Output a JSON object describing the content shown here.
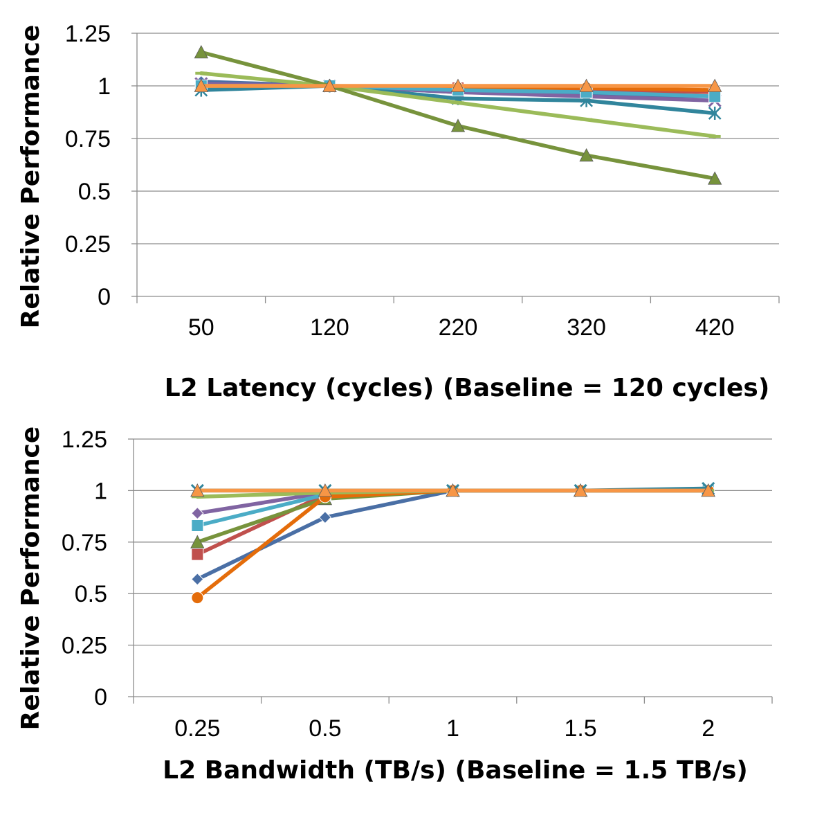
{
  "colors": {
    "grid": "#8c8c8c",
    "axis": "#8c8c8c",
    "s_blue": "#4a6fa5",
    "s_red": "#c0504d",
    "s_green": "#77933c",
    "s_purple": "#8064a2",
    "s_teal": "#31859c",
    "s_orange": "#e46c0a",
    "s_lightgreen": "#9bbb59",
    "s_lightblue": "#4bacc6",
    "s_orange2": "#f79646"
  },
  "chart_data": [
    {
      "type": "line",
      "xlabel": "L2 Latency (cycles) (Baseline = 120 cycles)",
      "ylabel": "Relative Performance",
      "categories": [
        "50",
        "120",
        "220",
        "320",
        "420"
      ],
      "y_ticks": [
        "0",
        "0.25",
        "0.5",
        "0.75",
        "1",
        "1.25"
      ],
      "ylim": [
        0,
        1.25
      ],
      "grid": true,
      "series": [
        {
          "color": "#4a6fa5",
          "marker": "diamond",
          "values": [
            1.02,
            1.0,
            0.97,
            0.96,
            0.95
          ]
        },
        {
          "color": "#c0504d",
          "marker": "square",
          "values": [
            1.0,
            1.0,
            0.99,
            0.98,
            0.97
          ]
        },
        {
          "color": "#8064a2",
          "marker": "x",
          "values": [
            1.01,
            1.0,
            0.97,
            0.95,
            0.93
          ]
        },
        {
          "color": "#31859c",
          "marker": "star",
          "values": [
            0.98,
            1.0,
            0.94,
            0.93,
            0.87
          ]
        },
        {
          "color": "#e46c0a",
          "marker": "circle",
          "values": [
            1.0,
            1.0,
            0.99,
            0.99,
            0.98
          ]
        },
        {
          "color": "#4bacc6",
          "marker": "square",
          "values": [
            1.0,
            1.0,
            0.98,
            0.97,
            0.95
          ]
        },
        {
          "color": "#9bbb59",
          "marker": "dash",
          "values": [
            1.06,
            1.0,
            0.92,
            0.84,
            0.76
          ]
        },
        {
          "color": "#77933c",
          "marker": "triangle",
          "values": [
            1.16,
            1.0,
            0.81,
            0.67,
            0.56
          ]
        },
        {
          "color": "#f79646",
          "marker": "triangle",
          "values": [
            1.0,
            1.0,
            1.0,
            1.0,
            1.0
          ]
        }
      ]
    },
    {
      "type": "line",
      "xlabel": "L2 Bandwidth (TB/s) (Baseline = 1.5 TB/s)",
      "ylabel": "Relative Performance",
      "categories": [
        "0.25",
        "0.5",
        "1",
        "1.5",
        "2"
      ],
      "y_ticks": [
        "0",
        "0.25",
        "0.5",
        "0.75",
        "1",
        "1.25"
      ],
      "ylim": [
        0,
        1.25
      ],
      "grid": true,
      "series": [
        {
          "color": "#4a6fa5",
          "marker": "diamond",
          "values": [
            0.57,
            0.87,
            1.0,
            1.0,
            1.0
          ]
        },
        {
          "color": "#c0504d",
          "marker": "square",
          "values": [
            0.69,
            0.98,
            1.0,
            1.0,
            1.0
          ]
        },
        {
          "color": "#77933c",
          "marker": "triangle",
          "values": [
            0.75,
            0.96,
            1.0,
            1.0,
            1.0
          ]
        },
        {
          "color": "#8064a2",
          "marker": "diamond",
          "values": [
            0.89,
            0.99,
            1.0,
            1.0,
            1.0
          ]
        },
        {
          "color": "#4bacc6",
          "marker": "square",
          "values": [
            0.83,
            0.98,
            1.0,
            1.0,
            1.0
          ]
        },
        {
          "color": "#e46c0a",
          "marker": "circle",
          "values": [
            0.48,
            0.97,
            1.0,
            1.0,
            1.0
          ]
        },
        {
          "color": "#9bbb59",
          "marker": "dash",
          "values": [
            0.97,
            0.99,
            1.0,
            1.0,
            1.0
          ]
        },
        {
          "color": "#31859c",
          "marker": "x",
          "values": [
            1.0,
            1.0,
            1.0,
            1.0,
            1.01
          ]
        },
        {
          "color": "#f79646",
          "marker": "triangle",
          "values": [
            1.0,
            1.0,
            1.0,
            1.0,
            1.0
          ]
        }
      ]
    }
  ]
}
